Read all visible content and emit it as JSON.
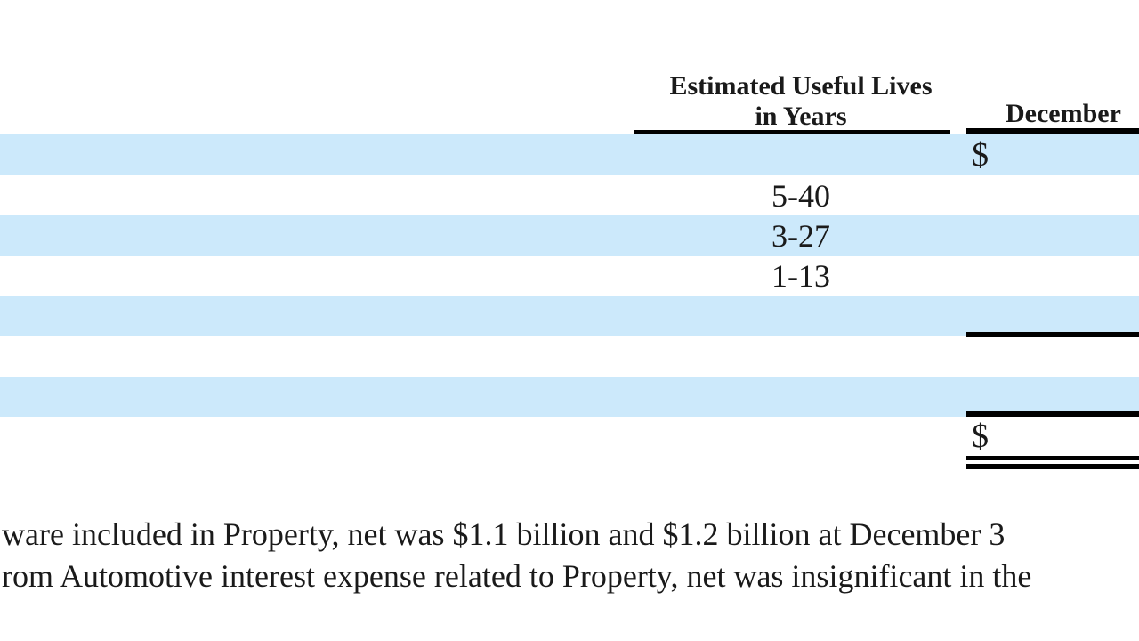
{
  "document": {
    "table": {
      "headers": {
        "useful_lives_line1": "Estimated Useful Lives",
        "useful_lives_line2": "in Years",
        "december": "December"
      },
      "rows": [
        {
          "shaded": true,
          "useful_lives": "",
          "currency": "$"
        },
        {
          "shaded": false,
          "useful_lives": "5-40",
          "currency": ""
        },
        {
          "shaded": true,
          "useful_lives": "3-27",
          "currency": ""
        },
        {
          "shaded": false,
          "useful_lives": "1-13",
          "currency": ""
        },
        {
          "shaded": true,
          "useful_lives": "",
          "currency": ""
        },
        {
          "shaded": false,
          "useful_lives": "",
          "currency": ""
        },
        {
          "shaded": true,
          "useful_lives": "",
          "currency": ""
        },
        {
          "shaded": false,
          "useful_lives": "",
          "currency": "$"
        }
      ]
    },
    "notes": [
      "ware included in Property, net was $1.1 billion and $1.2 billion at December 3",
      "rom Automotive interest expense related to Property, net was insignificant in the"
    ]
  },
  "colors": {
    "row_highlight": "#cce9fb",
    "rule": "#000000",
    "text": "#1a1a1a"
  }
}
